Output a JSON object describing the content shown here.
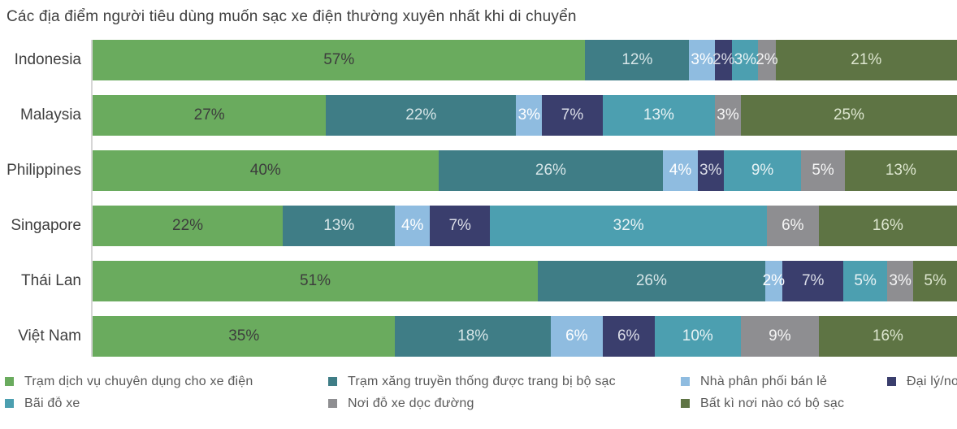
{
  "chart_data": {
    "type": "bar",
    "orientation": "horizontal-stacked",
    "title": "Các địa điểm người tiêu dùng muốn sạc xe điện thường xuyên nhất khi di chuyển",
    "categories": [
      "Indonesia",
      "Malaysia",
      "Philippines",
      "Singapore",
      "Thái Lan",
      "Việt Nam"
    ],
    "series": [
      {
        "name": "Trạm dịch vụ chuyên dụng cho xe điện",
        "color": "#6aab5e",
        "label_color": "#3d3d3d",
        "values": [
          57,
          27,
          40,
          22,
          51,
          35
        ]
      },
      {
        "name": "Trạm xăng truyền thống được trang bị bộ sạc",
        "color": "#3f7d86",
        "label_color": "#d7e6e8",
        "values": [
          12,
          22,
          26,
          13,
          26,
          18
        ]
      },
      {
        "name": "Nhà phân phối bán lẻ",
        "color": "#8fbce0",
        "label_color": "#ffffff",
        "values": [
          3,
          3,
          4,
          4,
          2,
          6
        ]
      },
      {
        "name": "Đại lý/no",
        "color": "#3a3e6d",
        "label_color": "#dcdee8",
        "values": [
          2,
          7,
          3,
          7,
          7,
          6
        ]
      },
      {
        "name": "Bãi đỗ xe",
        "color": "#4c9fb0",
        "label_color": "#e8f3f5",
        "values": [
          3,
          13,
          9,
          32,
          5,
          10
        ]
      },
      {
        "name": "Nơi đỗ xe dọc đường",
        "color": "#8e8e91",
        "label_color": "#f5f5f5",
        "values": [
          2,
          3,
          5,
          6,
          3,
          9
        ]
      },
      {
        "name": "Bất kì nơi nào có bộ sạc",
        "color": "#5e7444",
        "label_color": "#dde6cf",
        "values": [
          21,
          25,
          13,
          16,
          5,
          16
        ]
      }
    ],
    "value_suffix": "%",
    "xlim": [
      0,
      100
    ],
    "grid": false,
    "axis_line_color": "#d6d6d6",
    "legend_position": "bottom",
    "legend_rows": [
      [
        0,
        1,
        2,
        3
      ],
      [
        4,
        5,
        6
      ]
    ]
  }
}
